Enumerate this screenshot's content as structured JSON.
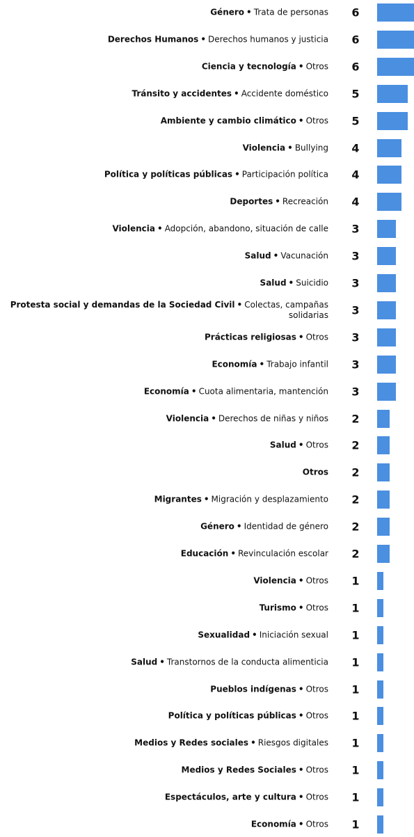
{
  "chart_data": {
    "type": "bar",
    "orientation": "horizontal",
    "color": "#4a8fe0",
    "separator": "•",
    "categories": [
      "Género",
      "Derechos Humanos",
      "Ciencia y tecnología",
      "Tránsito y accidentes",
      "Ambiente y cambio climático",
      "Violencia",
      "Política y políticas públicas",
      "Deportes",
      "Violencia",
      "Salud",
      "Salud",
      "Protesta social y demandas de la Sociedad Civil",
      "Prácticas religiosas",
      "Economía",
      "Economía",
      "Violencia",
      "Salud",
      "Otros",
      "Migrantes",
      "Género",
      "Educación",
      "Violencia",
      "Turismo",
      "Sexualidad",
      "Salud",
      "Pueblos indígenas",
      "Política y políticas públicas",
      "Medios y Redes sociales",
      "Medios y Redes Sociales",
      "Espectáculos, arte y cultura",
      "Economía"
    ],
    "subcategories": [
      "Trata de personas",
      "Derechos humanos y justicia",
      "Otros",
      "Accidente doméstico",
      "Otros",
      "Bullying",
      "Participación política",
      "Recreación",
      "Adopción, abandono, situación de calle",
      "Vacunación",
      "Suicidio",
      "Colectas, campañas solidarias",
      "Otros",
      "Trabajo infantil",
      "Cuota alimentaria, mantención",
      "Derechos de niñas y niños",
      "Otros",
      null,
      "Migración y desplazamiento",
      "Identidad de género",
      "Revinculación escolar",
      "Otros",
      "Otros",
      "Iniciación sexual",
      "Transtornos de la conducta alimenticia",
      "Otros",
      "Otros",
      "Riesgos digitales",
      "Otros",
      "Otros",
      "Otros"
    ],
    "values": [
      6,
      6,
      6,
      5,
      5,
      4,
      4,
      4,
      3,
      3,
      3,
      3,
      3,
      3,
      3,
      2,
      2,
      2,
      2,
      2,
      2,
      1,
      1,
      1,
      1,
      1,
      1,
      1,
      1,
      1,
      1
    ]
  }
}
